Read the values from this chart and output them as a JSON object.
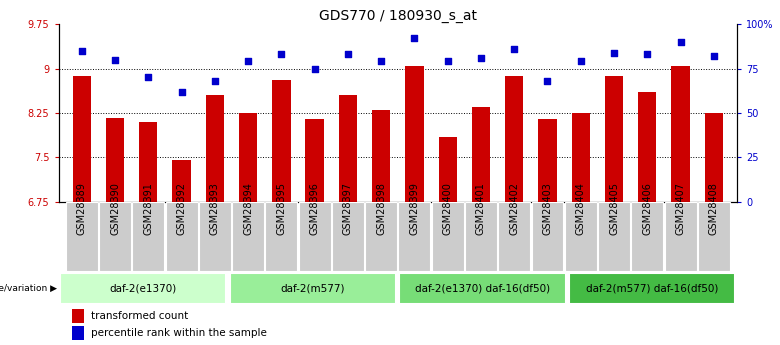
{
  "title": "GDS770 / 180930_s_at",
  "samples": [
    "GSM28389",
    "GSM28390",
    "GSM28391",
    "GSM28392",
    "GSM28393",
    "GSM28394",
    "GSM28395",
    "GSM28396",
    "GSM28397",
    "GSM28398",
    "GSM28399",
    "GSM28400",
    "GSM28401",
    "GSM28402",
    "GSM28403",
    "GSM28404",
    "GSM28405",
    "GSM28406",
    "GSM28407",
    "GSM28408"
  ],
  "bar_values": [
    8.87,
    8.17,
    8.1,
    7.45,
    8.55,
    8.25,
    8.8,
    8.15,
    8.55,
    8.3,
    9.05,
    7.85,
    8.35,
    8.87,
    8.15,
    8.25,
    8.87,
    8.6,
    9.05,
    8.25
  ],
  "scatter_values": [
    85,
    80,
    70,
    62,
    68,
    79,
    83,
    75,
    83,
    79,
    92,
    79,
    81,
    86,
    68,
    79,
    84,
    83,
    90,
    82
  ],
  "ylim_left": [
    6.75,
    9.75
  ],
  "ylim_right": [
    0,
    100
  ],
  "yticks_left": [
    6.75,
    7.5,
    8.25,
    9.0,
    9.75
  ],
  "ytick_labels_left": [
    "6.75",
    "7.5",
    "8.25",
    "9",
    "9.75"
  ],
  "yticks_right": [
    0,
    25,
    50,
    75,
    100
  ],
  "ytick_labels_right": [
    "0",
    "25",
    "50",
    "75",
    "100%"
  ],
  "hlines": [
    7.5,
    8.25,
    9.0
  ],
  "bar_color": "#cc0000",
  "scatter_color": "#0000cc",
  "bar_bottom": 6.75,
  "groups": [
    {
      "label": "daf-2(e1370)",
      "start": 0,
      "end": 5,
      "color": "#ccffcc"
    },
    {
      "label": "daf-2(m577)",
      "start": 5,
      "end": 10,
      "color": "#99ee99"
    },
    {
      "label": "daf-2(e1370) daf-16(df50)",
      "start": 10,
      "end": 15,
      "color": "#77dd77"
    },
    {
      "label": "daf-2(m577) daf-16(df50)",
      "start": 15,
      "end": 20,
      "color": "#44bb44"
    }
  ],
  "group_row_label": "genotype/variation",
  "legend_bar_label": "transformed count",
  "legend_scatter_label": "percentile rank within the sample",
  "background_color": "#ffffff",
  "plot_bg_color": "#ffffff",
  "title_fontsize": 10,
  "tick_fontsize": 7,
  "bar_width": 0.55,
  "sample_box_color": "#cccccc"
}
